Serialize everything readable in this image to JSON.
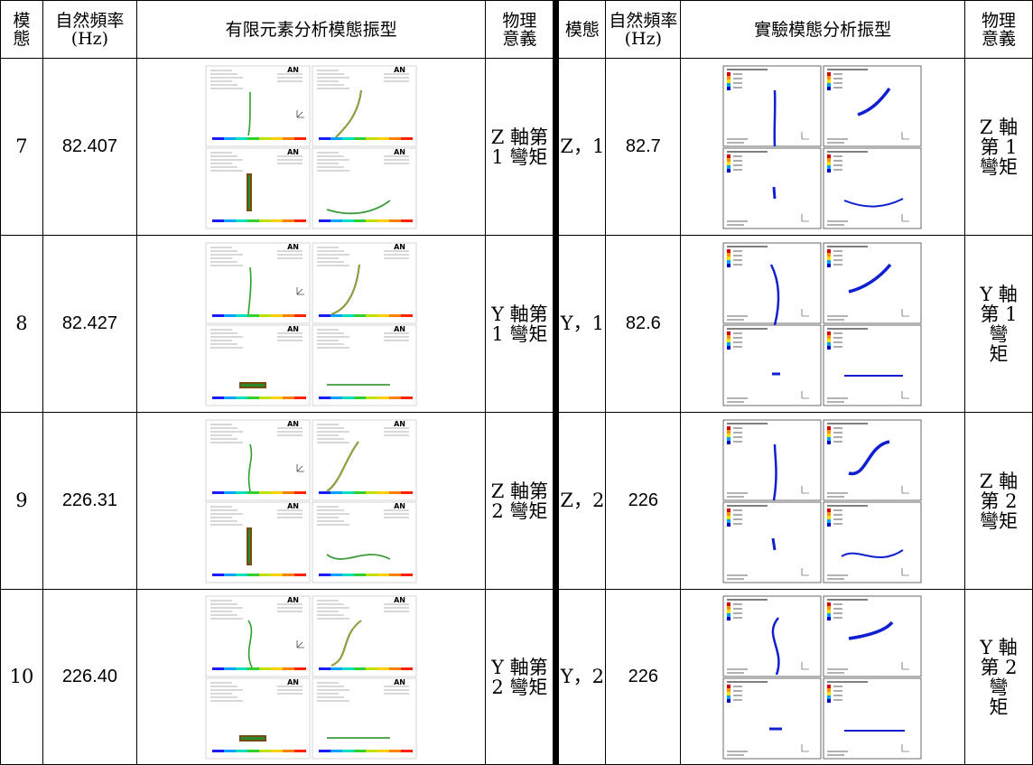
{
  "headers": {
    "mode": "模態",
    "freq": "自然頻率(Hz)",
    "fea_shape": "有限元素分析模態振型",
    "phys": "物理意義",
    "exp_mode": "模態",
    "exp_freq": "自然頻率(Hz)",
    "exp_shape": "實驗模態分析振型",
    "exp_phys": "物理意義"
  },
  "rows": [
    {
      "mode": "7",
      "freq": "82.407",
      "phys": "Z 軸第 1 彎矩",
      "exp_mode": "Z，1",
      "exp_freq": "82.7",
      "exp_phys": "Z 軸第 1 彎矩",
      "shape": "z1"
    },
    {
      "mode": "8",
      "freq": "82.427",
      "phys": "Y 軸第 1 彎矩",
      "exp_mode": "Y，1",
      "exp_freq": "82.6",
      "exp_phys": "Y 軸 第 1 彎 矩",
      "shape": "y1"
    },
    {
      "mode": "9",
      "freq": "226.31",
      "phys": "Z 軸第 2 彎矩",
      "exp_mode": "Z，2",
      "exp_freq": "226",
      "exp_phys": "Z 軸第 2 彎矩",
      "shape": "z2"
    },
    {
      "mode": "10",
      "freq": "226.40",
      "phys": "Y 軸第 2 彎矩",
      "exp_mode": "Y，2",
      "exp_freq": "226",
      "exp_phys": "Y 軸 第 2 彎 矩",
      "shape": "y2"
    }
  ],
  "fea_watermark": "AN"
}
